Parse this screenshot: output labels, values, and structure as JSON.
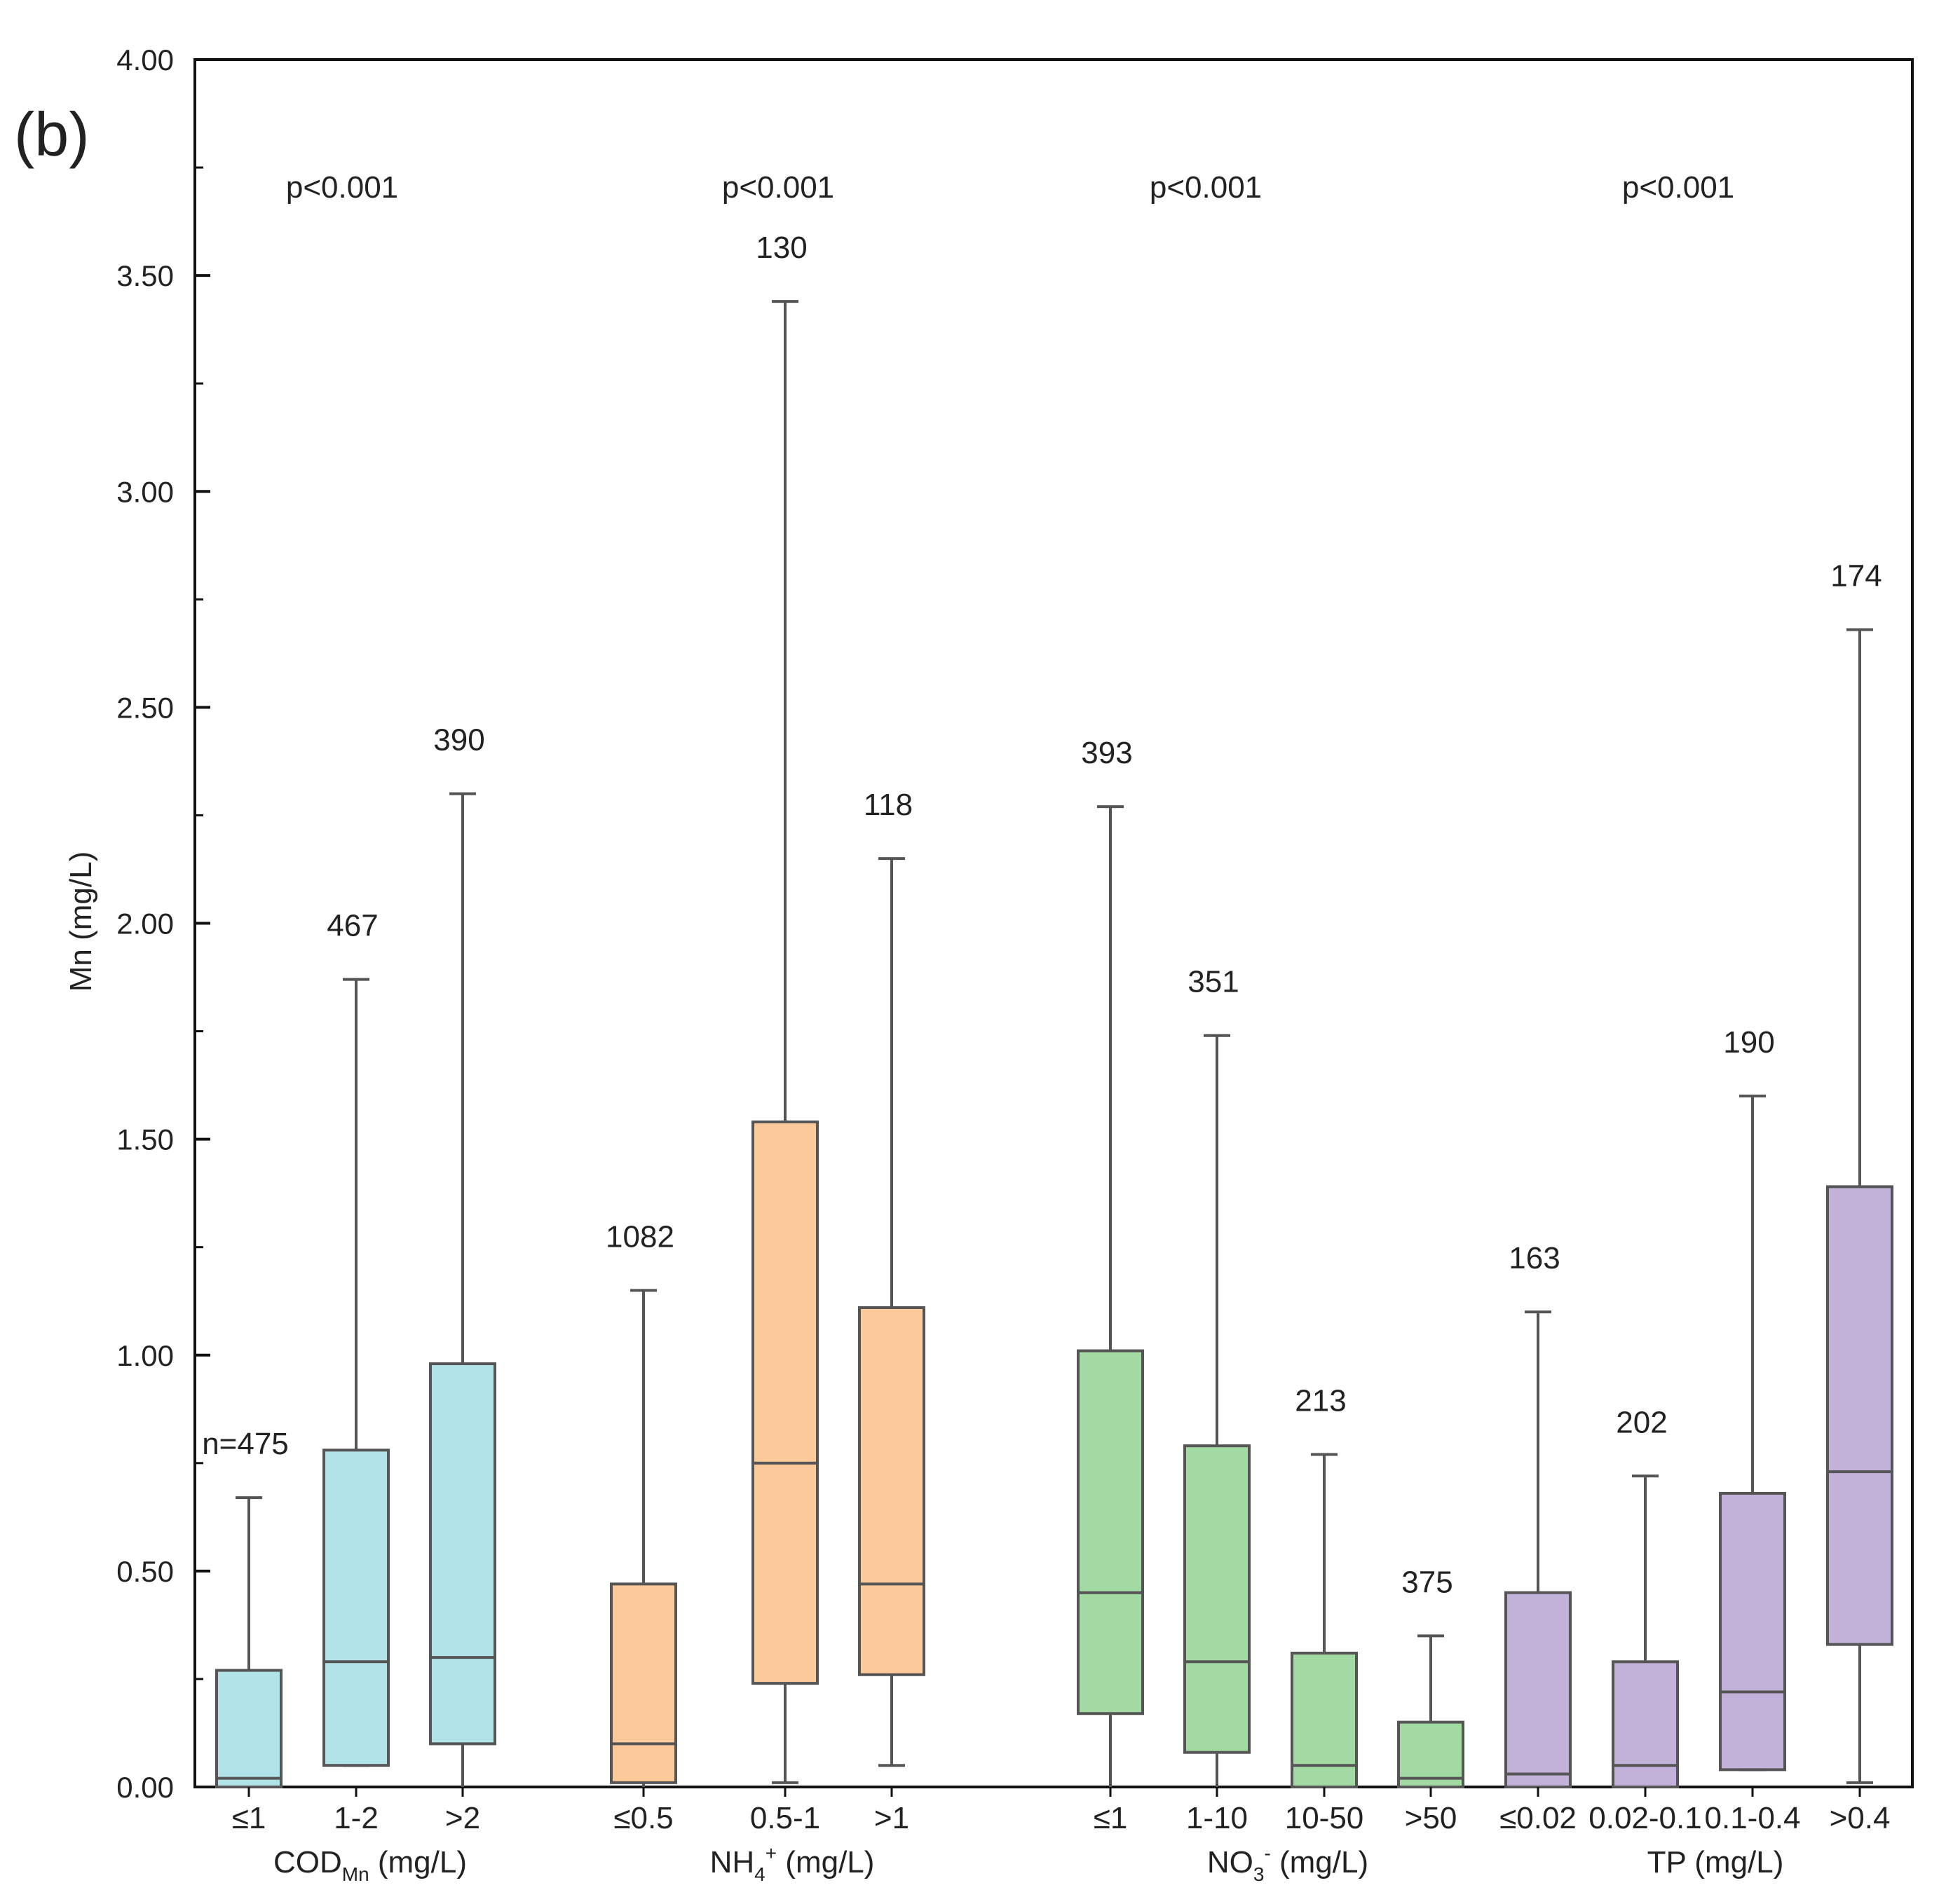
{
  "panel_label": "(b)",
  "chart_data": {
    "type": "box",
    "title": "",
    "ylabel": "Mn (mg/L)",
    "xlabel": "",
    "ylim": [
      0,
      4
    ],
    "yticks": [
      "0.00",
      "0.50",
      "1.00",
      "1.50",
      "2.00",
      "2.50",
      "3.00",
      "3.50",
      "4.00"
    ],
    "grid": false,
    "colors": {
      "cod": "#b2e3e8",
      "nh4": "#fbc99a",
      "no3": "#a3d9a3",
      "tp": "#c2b1d9",
      "stroke": "#555555"
    },
    "groups": [
      {
        "name": "COD_Mn (mg/L)",
        "label_main": "COD",
        "label_sub": "Mn",
        "label_sup": "",
        "label_unit": " (mg/L)",
        "p_value": "p<0.001",
        "color_key": "cod",
        "boxes": [
          {
            "category": "≤1",
            "n": "n=475",
            "whisker_low": 0.0,
            "q1": 0.0,
            "median": 0.02,
            "q3": 0.27,
            "whisker_high": 0.67
          },
          {
            "category": "1-2",
            "n": "467",
            "whisker_low": 0.05,
            "q1": 0.05,
            "median": 0.29,
            "q3": 0.78,
            "whisker_high": 1.87
          },
          {
            "category": ">2",
            "n": "390",
            "whisker_low": 0.0,
            "q1": 0.1,
            "median": 0.3,
            "q3": 0.98,
            "whisker_high": 2.3
          }
        ]
      },
      {
        "name": "NH4+ (mg/L)",
        "label_main": "NH",
        "label_sub": "4",
        "label_sup": "+",
        "label_unit": " (mg/L)",
        "p_value": "p<0.001",
        "color_key": "nh4",
        "boxes": [
          {
            "category": "≤0.5",
            "n": "1082",
            "whisker_low": 0.0,
            "q1": 0.01,
            "median": 0.1,
            "q3": 0.47,
            "whisker_high": 1.15
          },
          {
            "category": "0.5-1",
            "n": "130",
            "whisker_low": 0.01,
            "q1": 0.24,
            "median": 0.75,
            "q3": 1.54,
            "whisker_high": 3.44
          },
          {
            "category": ">1",
            "n": "118",
            "whisker_low": 0.05,
            "q1": 0.26,
            "median": 0.47,
            "q3": 1.11,
            "whisker_high": 2.15
          }
        ]
      },
      {
        "name": "NO3- (mg/L)",
        "label_main": "NO",
        "label_sub": "3",
        "label_sup": "-",
        "label_unit": " (mg/L)",
        "p_value": "p<0.001",
        "color_key": "no3",
        "boxes": [
          {
            "category": "≤1",
            "n": "393",
            "whisker_low": 0.0,
            "q1": 0.17,
            "median": 0.45,
            "q3": 1.01,
            "whisker_high": 2.27
          },
          {
            "category": "1-10",
            "n": "351",
            "whisker_low": 0.0,
            "q1": 0.08,
            "median": 0.29,
            "q3": 0.79,
            "whisker_high": 1.74
          },
          {
            "category": "10-50",
            "n": "213",
            "whisker_low": 0.0,
            "q1": 0.0,
            "median": 0.05,
            "q3": 0.31,
            "whisker_high": 0.77
          },
          {
            "category": ">50",
            "n": "375",
            "whisker_low": 0.0,
            "q1": 0.0,
            "median": 0.02,
            "q3": 0.15,
            "whisker_high": 0.35
          }
        ]
      },
      {
        "name": "TP (mg/L)",
        "label_main": "TP (mg/L)",
        "label_sub": "",
        "label_sup": "",
        "label_unit": "",
        "p_value": "p<0.001",
        "color_key": "tp",
        "boxes": [
          {
            "category": "≤0.02",
            "n": "163",
            "whisker_low": 0.0,
            "q1": 0.0,
            "median": 0.03,
            "q3": 0.45,
            "whisker_high": 1.1
          },
          {
            "category": "0.02-0.1",
            "n": "202",
            "whisker_low": 0.0,
            "q1": 0.0,
            "median": 0.05,
            "q3": 0.29,
            "whisker_high": 0.72
          },
          {
            "category": "0.1-0.4",
            "n": "190",
            "whisker_low": 0.04,
            "q1": 0.04,
            "median": 0.22,
            "q3": 0.68,
            "whisker_high": 1.6
          },
          {
            "category": ">0.4",
            "n": "174",
            "whisker_low": 0.01,
            "q1": 0.33,
            "median": 0.73,
            "q3": 1.39,
            "whisker_high": 2.68
          }
        ]
      }
    ]
  }
}
